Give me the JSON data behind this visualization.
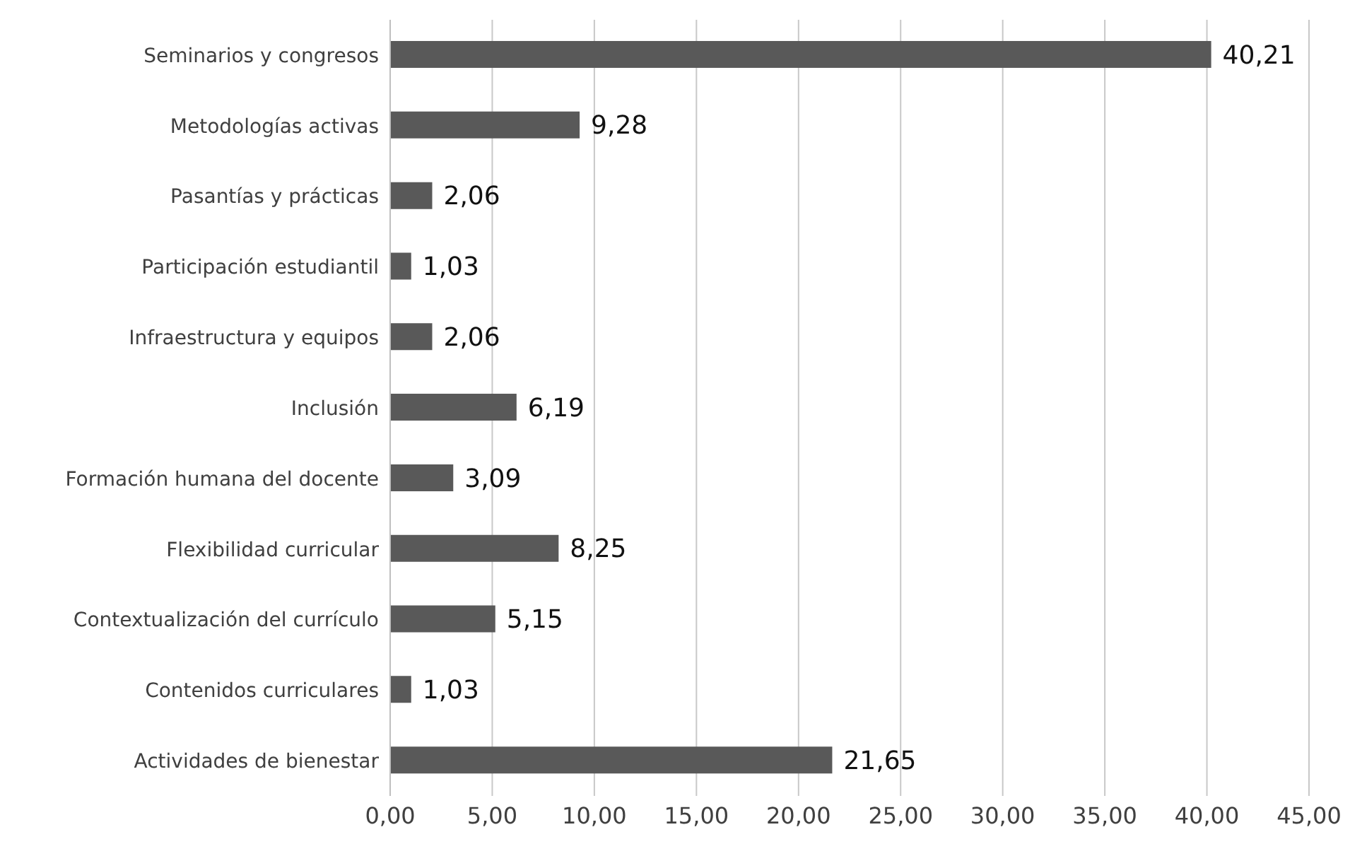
{
  "chart_data": {
    "type": "bar",
    "orientation": "horizontal",
    "categories": [
      "Seminarios y congresos",
      "Metodologías activas",
      "Pasantías y prácticas",
      "Participación estudiantil",
      "Infraestructura y equipos",
      "Inclusión",
      "Formación humana del docente",
      "Flexibilidad curricular",
      "Contextualización del currículo",
      "Contenidos curriculares",
      "Actividades de bienestar"
    ],
    "values": [
      40.21,
      9.28,
      2.06,
      1.03,
      2.06,
      6.19,
      3.09,
      8.25,
      5.15,
      1.03,
      21.65
    ],
    "value_labels": [
      "40,21",
      "9,28",
      "2,06",
      "1,03",
      "2,06",
      "6,19",
      "3,09",
      "8,25",
      "5,15",
      "1,03",
      "21,65"
    ],
    "color": "#595959",
    "xlim": [
      0,
      45
    ],
    "xticks": [
      {
        "value": 0,
        "label": "0,00"
      },
      {
        "value": 5,
        "label": "5,00"
      },
      {
        "value": 10,
        "label": "10,00"
      },
      {
        "value": 15,
        "label": "15,00"
      },
      {
        "value": 20,
        "label": "20,00"
      },
      {
        "value": 25,
        "label": "25,00"
      },
      {
        "value": 30,
        "label": "30,00"
      },
      {
        "value": 35,
        "label": "35,00"
      },
      {
        "value": 40,
        "label": "40,00"
      },
      {
        "value": 45,
        "label": "45,00"
      }
    ],
    "grid": "x"
  }
}
